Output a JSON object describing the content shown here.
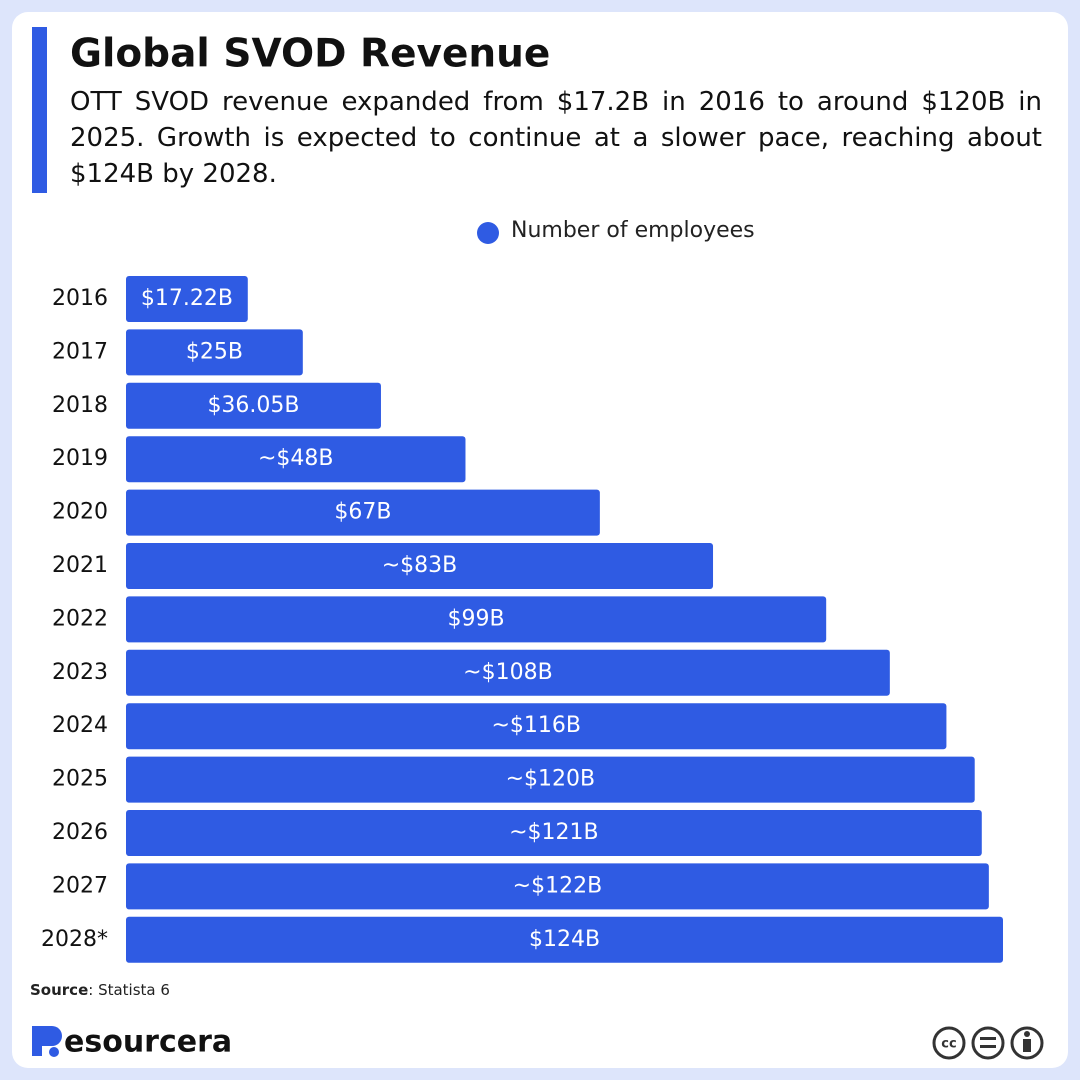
{
  "chart_data": {
    "type": "bar",
    "orientation": "horizontal",
    "title": "Global SVOD Revenue",
    "subtitle": "OTT SVOD revenue expanded from $17.2B in 2016 to around $120B in 2025. Growth is expected to continue at a slower pace, reaching about $124B by 2028.",
    "categories": [
      "2016",
      "2017",
      "2018",
      "2019",
      "2020",
      "2021",
      "2022",
      "2023",
      "2024",
      "2025",
      "2026",
      "2027",
      "2028*"
    ],
    "series": [
      {
        "name": "Number of employees",
        "color": "#2f5be3",
        "values": [
          17.22,
          25,
          36.05,
          48,
          67,
          83,
          99,
          108,
          116,
          120,
          121,
          122,
          124
        ],
        "value_labels": [
          "$17.22B",
          "$25B",
          "$36.05B",
          "~$48B",
          "$67B",
          "~$83B",
          "$99B",
          "~$108B",
          "~$116B",
          "~$120B",
          "~$121B",
          "~$122B",
          "$124B"
        ]
      }
    ],
    "legend": "top",
    "source_label": "Source",
    "source_text": ": Statista 6",
    "brand": "esourcera",
    "license": "cc"
  }
}
